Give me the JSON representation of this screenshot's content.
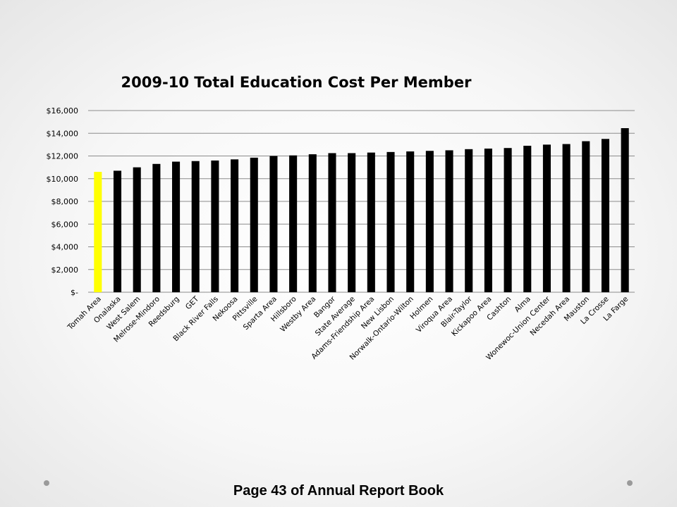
{
  "chart_data": {
    "type": "bar",
    "title": "2009-10 Total Education Cost Per Member",
    "xlabel": "",
    "ylabel": "",
    "ylim": [
      0,
      16000
    ],
    "yticks": [
      0,
      2000,
      4000,
      6000,
      8000,
      10000,
      12000,
      14000,
      16000
    ],
    "ytick_labels": [
      "$-",
      "$2,000",
      "$4,000",
      "$6,000",
      "$8,000",
      "$10,000",
      "$12,000",
      "$14,000",
      "$16,000"
    ],
    "grid": true,
    "legend": "none",
    "categories": [
      "Tomah Area",
      "Onalaska",
      "West Salem",
      "Melrose-Mindoro",
      "Reedsburg",
      "GET",
      "Black River Falls",
      "Nekoosa",
      "Pittsville",
      "Sparta Area",
      "Hillsboro",
      "Westby Area",
      "Bangor",
      "State Average",
      "Adams-Friendship Area",
      "New Lisbon",
      "Norwalk-Ontario-Wilton",
      "Holmen",
      "Viroqua Area",
      "Blair-Taylor",
      "Kickapoo Area",
      "Cashton",
      "Alma",
      "Wonewoc-Union Center",
      "Necedah Area",
      "Mauston",
      "La Crosse",
      "La Farge"
    ],
    "values": [
      10600,
      10700,
      11000,
      11300,
      11500,
      11550,
      11600,
      11700,
      11850,
      12000,
      12050,
      12150,
      12250,
      12250,
      12300,
      12350,
      12400,
      12450,
      12500,
      12600,
      12650,
      12700,
      12900,
      13000,
      13050,
      13300,
      13500,
      14450
    ],
    "highlight_index": 0,
    "colors": {
      "bar": "#000000",
      "highlight": "#ffff00",
      "grid": "#8c8c8c"
    }
  },
  "footer": {
    "text": "Page 43 of Annual Report Book"
  }
}
